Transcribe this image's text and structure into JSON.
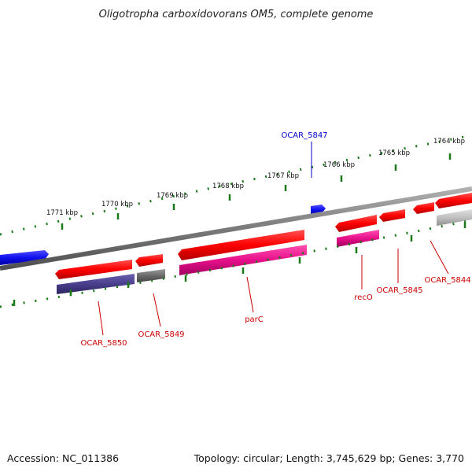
{
  "title": "Oligotropha carboxidovorans OM5, complete genome",
  "footer": {
    "accession": "Accession: NC_011386",
    "summary": "Topology: circular; Length: 3,745,629 bp; Genes: 3,770"
  },
  "ticks": [
    "1771 kbp",
    "1770 kbp",
    "1769 kbp",
    "1768 kbp",
    "1767 kbp",
    "1766 kbp",
    "1765 kbp",
    "1764 kbp"
  ],
  "gene_labels": {
    "ocar5847": "OCAR_5847",
    "ocar5850": "OCAR_5850",
    "ocar5849": "OCAR_5849",
    "parC": "parC",
    "recO": "recO",
    "ocar5845": "OCAR_5845",
    "ocar5844": "OCAR_5844"
  },
  "colors": {
    "cds_red": "#ff1010",
    "rna_magenta": "#e0188c",
    "forward_blue": "#1010f0",
    "dark_purple": "#4a3f8c",
    "gray": "#707070",
    "backbone": "#808080",
    "ruler": "#1a7a1a",
    "label_red": "#cc0000",
    "label_blue": "#0000cc"
  }
}
